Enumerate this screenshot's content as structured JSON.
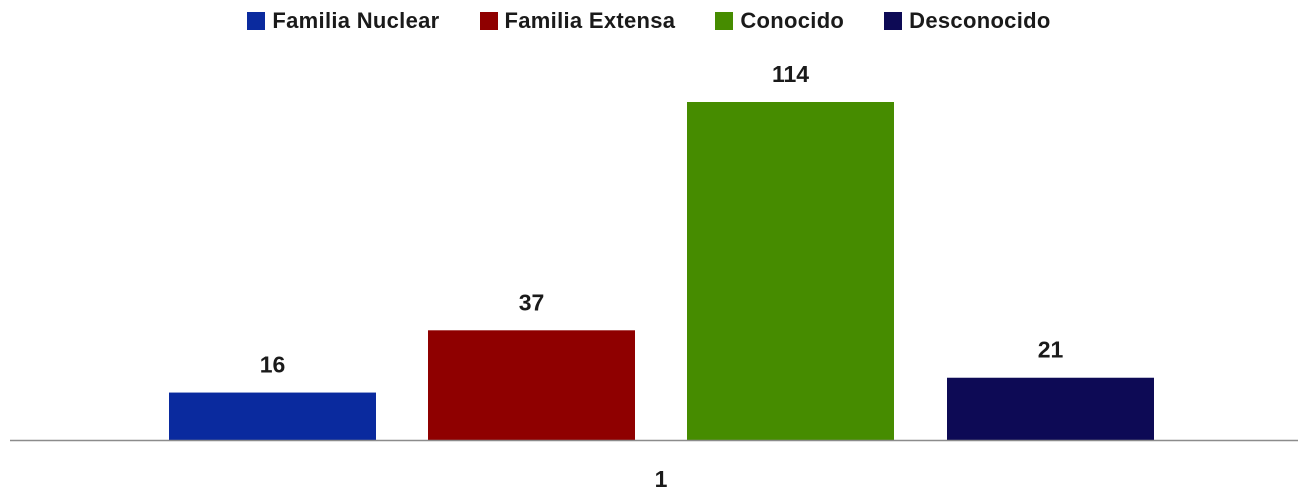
{
  "chart_data": {
    "type": "bar",
    "categories": [
      "1"
    ],
    "series": [
      {
        "name": "Familia Nuclear",
        "values": [
          16
        ],
        "color": "#0a2a9e"
      },
      {
        "name": "Familia Extensa",
        "values": [
          37
        ],
        "color": "#8f0000"
      },
      {
        "name": "Conocido",
        "values": [
          114
        ],
        "color": "#468c00"
      },
      {
        "name": "Desconocido",
        "values": [
          21
        ],
        "color": "#0d0a55"
      }
    ],
    "title": "",
    "xlabel": "",
    "ylabel": "",
    "ylim": [
      0,
      114
    ],
    "grid": false,
    "legend": "top-center",
    "data_labels": true
  }
}
